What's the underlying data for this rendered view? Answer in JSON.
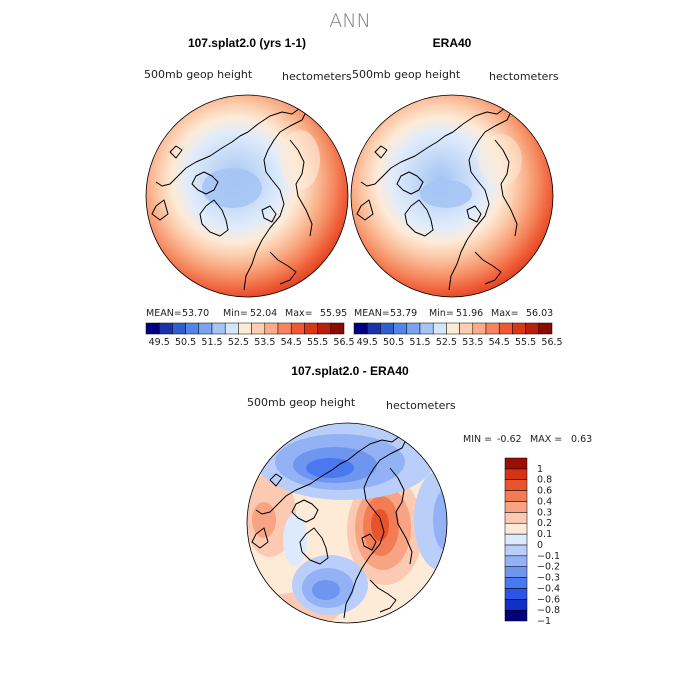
{
  "title": "ANN",
  "panels": [
    {
      "id": "model",
      "title": "107.splat2.0 (yrs 1-1)",
      "variable": "500mb geop height",
      "units": "hectometers",
      "stats": {
        "mean_label": "MEAN=",
        "mean": "53.70",
        "min_label": "Min=",
        "min": "52.04",
        "max_label": "Max=",
        "max": "55.95"
      }
    },
    {
      "id": "obs",
      "title": "ERA40",
      "variable": "500mb geop height",
      "units": "hectometers",
      "stats": {
        "mean_label": "MEAN=",
        "mean": "53.79",
        "min_label": "Min=",
        "min": "51.96",
        "max_label": "Max=",
        "max": "56.03"
      }
    },
    {
      "id": "diff",
      "title": "107.splat2.0 - ERA40",
      "variable": "500mb geop height",
      "units": "hectometers",
      "stats": {
        "min_label": "MIN =",
        "min": "-0.62",
        "max_label": "MAX =",
        "max": "0.63"
      }
    }
  ],
  "colorbar_top": {
    "colors": [
      "#00007f",
      "#1a32a8",
      "#2e5fd1",
      "#4f86e8",
      "#7aa4ef",
      "#a4c4f4",
      "#d4e6fb",
      "#fdebd8",
      "#fccfb0",
      "#f9ac85",
      "#f5855c",
      "#ee5a35",
      "#db3818",
      "#bb1e0a",
      "#8c0c04"
    ],
    "tick_labels": [
      "49.5",
      "50.5",
      "51.5",
      "52.5",
      "53.5",
      "54.5",
      "55.5",
      "56.5"
    ]
  },
  "colorbar_diff": {
    "colors": [
      "#00007f",
      "#1030c8",
      "#2a55e6",
      "#4a78ee",
      "#6e96f1",
      "#93b2f5",
      "#b9cffa",
      "#dde9fd",
      "#fde9dc",
      "#fcc9b2",
      "#f8a382",
      "#f37c55",
      "#e8532b",
      "#d43414",
      "#9c0e05"
    ],
    "tick_labels": [
      "1",
      "0.8",
      "0.6",
      "0.4",
      "0.3",
      "0.2",
      "0.1",
      "0",
      "−0.1",
      "−0.2",
      "−0.3",
      "−0.4",
      "−0.6",
      "−0.8",
      "−1"
    ]
  }
}
